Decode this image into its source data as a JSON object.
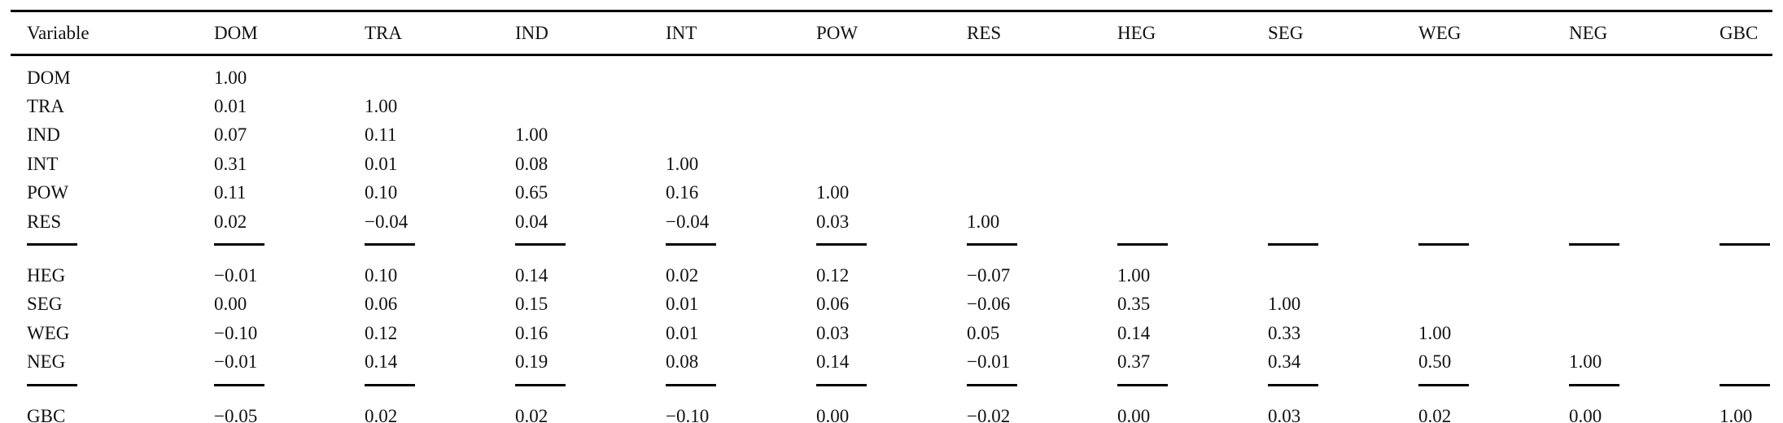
{
  "page": {
    "background": "#ffffff",
    "text_color": "#111111",
    "rule_color": "#000000"
  },
  "table": {
    "header": [
      "Variable",
      "DOM",
      "TRA",
      "IND",
      "INT",
      "POW",
      "RES",
      "HEG",
      "SEG",
      "WEG",
      "NEG",
      "GBC"
    ],
    "groups": [
      {
        "rows": [
          {
            "label": "DOM",
            "values": [
              "1.00"
            ]
          },
          {
            "label": "TRA",
            "values": [
              "0.01",
              "1.00"
            ]
          },
          {
            "label": "IND",
            "values": [
              "0.07",
              "0.11",
              "1.00"
            ]
          },
          {
            "label": "INT",
            "values": [
              "0.31",
              "0.01",
              "0.08",
              "1.00"
            ]
          },
          {
            "label": "POW",
            "values": [
              "0.11",
              "0.10",
              "0.65",
              "0.16",
              "1.00"
            ]
          },
          {
            "label": "RES",
            "values": [
              "0.02",
              "−0.04",
              "0.04",
              "−0.04",
              "0.03",
              "1.00"
            ]
          }
        ]
      },
      {
        "rows": [
          {
            "label": "HEG",
            "values": [
              "−0.01",
              "0.10",
              "0.14",
              "0.02",
              "0.12",
              "−0.07",
              "1.00"
            ]
          },
          {
            "label": "SEG",
            "values": [
              "0.00",
              "0.06",
              "0.15",
              "0.01",
              "0.06",
              "−0.06",
              "0.35",
              "1.00"
            ]
          },
          {
            "label": "WEG",
            "values": [
              "−0.10",
              "0.12",
              "0.16",
              "0.01",
              "0.03",
              "0.05",
              "0.14",
              "0.33",
              "1.00"
            ]
          },
          {
            "label": "NEG",
            "values": [
              "−0.01",
              "0.14",
              "0.19",
              "0.08",
              "0.14",
              "−0.01",
              "0.37",
              "0.34",
              "0.50",
              "1.00"
            ]
          }
        ]
      },
      {
        "rows": [
          {
            "label": "GBC",
            "values": [
              "−0.05",
              "0.02",
              "0.02",
              "−0.10",
              "0.00",
              "−0.02",
              "0.00",
              "0.03",
              "0.02",
              "0.00",
              "1.00"
            ]
          }
        ]
      }
    ]
  }
}
